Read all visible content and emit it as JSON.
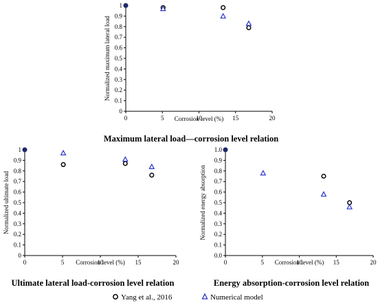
{
  "chart_data": [
    {
      "type": "scatter",
      "title": "Maximum lateral load—corrosion level relation",
      "xlabel": "Corrosion level (%)",
      "ylabel": "Normalized maximum lateral load",
      "xlim": [
        0,
        20
      ],
      "ylim": [
        0,
        1
      ],
      "xticks": [
        "0",
        "5",
        "10",
        "15",
        "20"
      ],
      "yticks": [
        "0",
        "0.1",
        "0.2",
        "0.3",
        "0.4",
        "0.5",
        "0.6",
        "0.7",
        "0.8",
        "0.9",
        "1"
      ],
      "grid": false,
      "series": [
        {
          "name": "Yang et al., 2016",
          "marker": "circle",
          "x": [
            0,
            5.1,
            13.3,
            16.8
          ],
          "y": [
            1.0,
            0.98,
            0.98,
            0.79
          ]
        },
        {
          "name": "Numerical model",
          "marker": "triangle",
          "x": [
            0,
            5.1,
            13.3,
            16.8
          ],
          "y": [
            1.0,
            0.97,
            0.9,
            0.83
          ]
        }
      ]
    },
    {
      "type": "scatter",
      "title": "Ultimate lateral load-corrosion level relation",
      "xlabel": "Corrosion level (%)",
      "ylabel": "Normalized ultimate load",
      "xlim": [
        0,
        20
      ],
      "ylim": [
        0,
        1
      ],
      "xticks": [
        "0",
        "5",
        "10",
        "15",
        "20"
      ],
      "yticks": [
        "0",
        "0.1",
        "0.2",
        "0.3",
        "0.4",
        "0.5",
        "0.6",
        "0.7",
        "0.8",
        "0.9",
        "1"
      ],
      "grid": false,
      "series": [
        {
          "name": "Yang et al., 2016",
          "marker": "circle",
          "x": [
            0,
            5.1,
            13.3,
            16.8
          ],
          "y": [
            1.0,
            0.86,
            0.87,
            0.76
          ]
        },
        {
          "name": "Numerical model",
          "marker": "triangle",
          "x": [
            0,
            5.1,
            13.3,
            16.8
          ],
          "y": [
            1.0,
            0.97,
            0.91,
            0.84
          ]
        }
      ]
    },
    {
      "type": "scatter",
      "title": "Energy absorption-corrosion level relation",
      "xlabel": "Corrosion level (%)",
      "ylabel": "Normalized energy absorption",
      "xlim": [
        0,
        20
      ],
      "ylim": [
        0,
        1
      ],
      "xticks": [
        "0",
        "5",
        "10",
        "15",
        "20"
      ],
      "yticks": [
        "0.0",
        "0.1",
        "0.2",
        "0.3",
        "0.4",
        "0.5",
        "0.6",
        "0.7",
        "0.8",
        "0.9",
        "1.0"
      ],
      "grid": false,
      "series": [
        {
          "name": "Yang et al., 2016",
          "marker": "circle",
          "x": [
            0,
            13.3,
            16.8
          ],
          "y": [
            1.0,
            0.75,
            0.5
          ]
        },
        {
          "name": "Numerical model",
          "marker": "triangle",
          "x": [
            0,
            5.1,
            13.3,
            16.8
          ],
          "y": [
            1.0,
            0.78,
            0.58,
            0.46
          ]
        }
      ]
    }
  ],
  "legend": {
    "items": [
      {
        "label": "Yang et al., 2016",
        "marker": "circle"
      },
      {
        "label": "Numerical model",
        "marker": "triangle"
      }
    ],
    "placement": "bottom-center"
  },
  "colors": {
    "circle": "#000000",
    "triangle": "#2b33c9",
    "origin_fill": "#1c2a6b",
    "axis": "#000000"
  }
}
